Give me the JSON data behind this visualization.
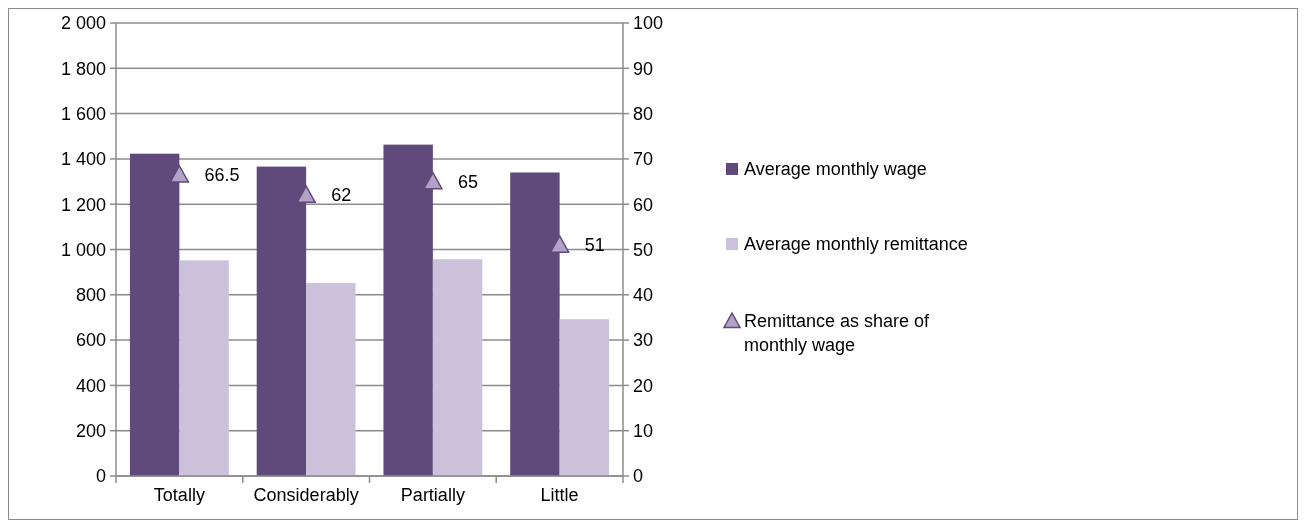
{
  "chart_data": {
    "type": "bar",
    "categories": [
      "Totally",
      "Considerably",
      "Partially",
      "Little"
    ],
    "series": [
      {
        "name": "Average monthly wage",
        "color": "#604a7b",
        "values": [
          1423,
          1366,
          1463,
          1340
        ]
      },
      {
        "name": "Average monthly remittance",
        "color": "#ccc1da",
        "values": [
          952,
          852,
          957,
          692
        ]
      },
      {
        "name": "Remittance as share of monthly wage",
        "type": "scatter",
        "axis": "y2",
        "marker": "triangle",
        "color": "#b3a2c7",
        "values": [
          66.5,
          62,
          65,
          51
        ],
        "value_labels": [
          "66.5",
          "62",
          "65",
          "51"
        ]
      }
    ],
    "ylim": [
      0,
      2000
    ],
    "yticks": [
      0,
      200,
      400,
      600,
      800,
      {
        "value": 1000,
        "label": "1 000"
      },
      {
        "value": 1200,
        "label": "1 200"
      },
      {
        "value": 1400,
        "label": "1 400"
      },
      {
        "value": 1600,
        "label": "1 600"
      },
      {
        "value": 1800,
        "label": "1 800"
      },
      {
        "value": 2000,
        "label": "2 000"
      }
    ],
    "y2lim": [
      0,
      100
    ],
    "y2ticks": [
      0,
      10,
      20,
      30,
      40,
      50,
      60,
      70,
      80,
      90,
      100
    ],
    "grid": "y",
    "legend": "right"
  }
}
